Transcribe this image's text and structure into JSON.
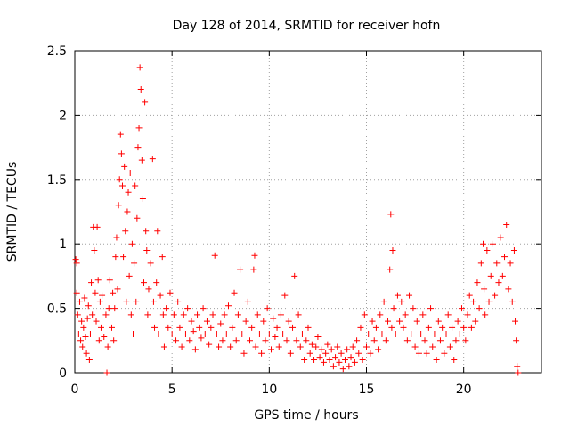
{
  "chart_data": {
    "type": "scatter",
    "title": "Day 128 of 2014, SRMTID for receiver hofn",
    "xlabel": "GPS time / hours",
    "ylabel": "SRMTID / TECUs",
    "xlim": [
      0,
      24
    ],
    "ylim": [
      0,
      2.5
    ],
    "x_ticks": [
      0,
      5,
      10,
      15,
      20
    ],
    "x_tick_labels": [
      "0",
      "5",
      "10",
      "15",
      "20"
    ],
    "y_ticks": [
      0,
      0.5,
      1,
      1.5,
      2,
      2.5
    ],
    "y_tick_labels": [
      "0",
      "0.5",
      "1",
      "1.5",
      "2",
      "2.5"
    ],
    "grid": true,
    "marker": "+",
    "color": "#ff0000",
    "series": [
      {
        "name": "SRMTID",
        "points": [
          [
            0.05,
            0.88
          ],
          [
            0.1,
            0.85
          ],
          [
            0.1,
            0.62
          ],
          [
            0.15,
            0.45
          ],
          [
            0.2,
            0.3
          ],
          [
            0.25,
            0.55
          ],
          [
            0.3,
            0.25
          ],
          [
            0.35,
            0.4
          ],
          [
            0.4,
            0.2
          ],
          [
            0.45,
            0.35
          ],
          [
            0.5,
            0.58
          ],
          [
            0.55,
            0.28
          ],
          [
            0.6,
            0.15
          ],
          [
            0.65,
            0.42
          ],
          [
            0.7,
            0.52
          ],
          [
            0.75,
            0.1
          ],
          [
            0.8,
            0.3
          ],
          [
            0.85,
            0.7
          ],
          [
            0.9,
            0.45
          ],
          [
            0.95,
            1.13
          ],
          [
            1.0,
            0.95
          ],
          [
            1.05,
            0.62
          ],
          [
            1.1,
            0.4
          ],
          [
            1.15,
            1.13
          ],
          [
            1.2,
            0.72
          ],
          [
            1.25,
            0.25
          ],
          [
            1.3,
            0.55
          ],
          [
            1.35,
            0.35
          ],
          [
            1.4,
            0.6
          ],
          [
            1.5,
            0.28
          ],
          [
            1.6,
            0.45
          ],
          [
            1.65,
            0.0
          ],
          [
            1.7,
            0.2
          ],
          [
            1.75,
            0.5
          ],
          [
            1.8,
            0.72
          ],
          [
            1.9,
            0.35
          ],
          [
            1.95,
            0.62
          ],
          [
            2.0,
            0.25
          ],
          [
            2.05,
            0.5
          ],
          [
            2.1,
            0.9
          ],
          [
            2.15,
            1.05
          ],
          [
            2.2,
            0.65
          ],
          [
            2.25,
            1.3
          ],
          [
            2.3,
            1.5
          ],
          [
            2.35,
            1.85
          ],
          [
            2.4,
            1.7
          ],
          [
            2.45,
            1.45
          ],
          [
            2.5,
            0.9
          ],
          [
            2.55,
            1.6
          ],
          [
            2.6,
            1.1
          ],
          [
            2.65,
            0.55
          ],
          [
            2.7,
            1.25
          ],
          [
            2.75,
            1.4
          ],
          [
            2.8,
            0.75
          ],
          [
            2.85,
            1.55
          ],
          [
            2.9,
            0.45
          ],
          [
            2.95,
            1.0
          ],
          [
            3.0,
            0.3
          ],
          [
            3.05,
            0.85
          ],
          [
            3.1,
            1.45
          ],
          [
            3.15,
            0.55
          ],
          [
            3.2,
            1.2
          ],
          [
            3.25,
            1.75
          ],
          [
            3.3,
            1.9
          ],
          [
            3.35,
            2.37
          ],
          [
            3.4,
            2.2
          ],
          [
            3.45,
            1.65
          ],
          [
            3.5,
            1.35
          ],
          [
            3.55,
            0.7
          ],
          [
            3.6,
            2.1
          ],
          [
            3.65,
            1.1
          ],
          [
            3.7,
            0.95
          ],
          [
            3.75,
            0.45
          ],
          [
            3.8,
            0.65
          ],
          [
            3.9,
            0.85
          ],
          [
            4.0,
            1.66
          ],
          [
            4.05,
            0.55
          ],
          [
            4.1,
            0.35
          ],
          [
            4.2,
            0.7
          ],
          [
            4.25,
            1.1
          ],
          [
            4.3,
            0.3
          ],
          [
            4.4,
            0.6
          ],
          [
            4.5,
            0.9
          ],
          [
            4.55,
            0.45
          ],
          [
            4.6,
            0.2
          ],
          [
            4.7,
            0.5
          ],
          [
            4.8,
            0.35
          ],
          [
            4.9,
            0.62
          ],
          [
            5.0,
            0.3
          ],
          [
            5.1,
            0.45
          ],
          [
            5.2,
            0.25
          ],
          [
            5.3,
            0.55
          ],
          [
            5.4,
            0.35
          ],
          [
            5.5,
            0.2
          ],
          [
            5.6,
            0.45
          ],
          [
            5.7,
            0.3
          ],
          [
            5.8,
            0.5
          ],
          [
            5.9,
            0.25
          ],
          [
            6.0,
            0.4
          ],
          [
            6.1,
            0.32
          ],
          [
            6.2,
            0.18
          ],
          [
            6.3,
            0.45
          ],
          [
            6.4,
            0.35
          ],
          [
            6.5,
            0.27
          ],
          [
            6.6,
            0.5
          ],
          [
            6.7,
            0.3
          ],
          [
            6.8,
            0.4
          ],
          [
            6.9,
            0.22
          ],
          [
            7.0,
            0.35
          ],
          [
            7.1,
            0.45
          ],
          [
            7.2,
            0.91
          ],
          [
            7.3,
            0.3
          ],
          [
            7.4,
            0.2
          ],
          [
            7.5,
            0.38
          ],
          [
            7.6,
            0.25
          ],
          [
            7.7,
            0.45
          ],
          [
            7.8,
            0.3
          ],
          [
            7.9,
            0.52
          ],
          [
            8.0,
            0.2
          ],
          [
            8.1,
            0.35
          ],
          [
            8.2,
            0.62
          ],
          [
            8.3,
            0.25
          ],
          [
            8.4,
            0.45
          ],
          [
            8.5,
            0.8
          ],
          [
            8.6,
            0.3
          ],
          [
            8.7,
            0.15
          ],
          [
            8.8,
            0.4
          ],
          [
            8.9,
            0.55
          ],
          [
            9.0,
            0.25
          ],
          [
            9.1,
            0.35
          ],
          [
            9.2,
            0.8
          ],
          [
            9.25,
            0.91
          ],
          [
            9.3,
            0.2
          ],
          [
            9.4,
            0.45
          ],
          [
            9.5,
            0.3
          ],
          [
            9.6,
            0.15
          ],
          [
            9.7,
            0.4
          ],
          [
            9.8,
            0.25
          ],
          [
            9.9,
            0.5
          ],
          [
            10.0,
            0.3
          ],
          [
            10.1,
            0.18
          ],
          [
            10.2,
            0.42
          ],
          [
            10.3,
            0.28
          ],
          [
            10.4,
            0.35
          ],
          [
            10.5,
            0.2
          ],
          [
            10.6,
            0.45
          ],
          [
            10.7,
            0.3
          ],
          [
            10.8,
            0.6
          ],
          [
            10.9,
            0.25
          ],
          [
            11.0,
            0.4
          ],
          [
            11.1,
            0.15
          ],
          [
            11.2,
            0.35
          ],
          [
            11.3,
            0.75
          ],
          [
            11.4,
            0.25
          ],
          [
            11.5,
            0.45
          ],
          [
            11.6,
            0.2
          ],
          [
            11.7,
            0.3
          ],
          [
            11.8,
            0.1
          ],
          [
            11.9,
            0.25
          ],
          [
            12.0,
            0.35
          ],
          [
            12.1,
            0.15
          ],
          [
            12.2,
            0.22
          ],
          [
            12.3,
            0.1
          ],
          [
            12.4,
            0.2
          ],
          [
            12.5,
            0.28
          ],
          [
            12.6,
            0.12
          ],
          [
            12.7,
            0.18
          ],
          [
            12.8,
            0.08
          ],
          [
            12.9,
            0.15
          ],
          [
            13.0,
            0.22
          ],
          [
            13.1,
            0.1
          ],
          [
            13.2,
            0.18
          ],
          [
            13.3,
            0.05
          ],
          [
            13.4,
            0.12
          ],
          [
            13.5,
            0.2
          ],
          [
            13.6,
            0.08
          ],
          [
            13.7,
            0.15
          ],
          [
            13.8,
            0.03
          ],
          [
            13.9,
            0.1
          ],
          [
            14.0,
            0.18
          ],
          [
            14.1,
            0.05
          ],
          [
            14.2,
            0.12
          ],
          [
            14.3,
            0.2
          ],
          [
            14.4,
            0.08
          ],
          [
            14.5,
            0.25
          ],
          [
            14.6,
            0.15
          ],
          [
            14.7,
            0.35
          ],
          [
            14.8,
            0.1
          ],
          [
            14.9,
            0.45
          ],
          [
            15.0,
            0.2
          ],
          [
            15.1,
            0.3
          ],
          [
            15.2,
            0.15
          ],
          [
            15.3,
            0.4
          ],
          [
            15.4,
            0.25
          ],
          [
            15.5,
            0.35
          ],
          [
            15.6,
            0.18
          ],
          [
            15.7,
            0.45
          ],
          [
            15.8,
            0.3
          ],
          [
            15.9,
            0.55
          ],
          [
            16.0,
            0.25
          ],
          [
            16.1,
            0.4
          ],
          [
            16.2,
            0.8
          ],
          [
            16.25,
            1.23
          ],
          [
            16.3,
            0.35
          ],
          [
            16.35,
            0.95
          ],
          [
            16.4,
            0.5
          ],
          [
            16.5,
            0.3
          ],
          [
            16.6,
            0.6
          ],
          [
            16.7,
            0.4
          ],
          [
            16.8,
            0.55
          ],
          [
            16.9,
            0.35
          ],
          [
            17.0,
            0.45
          ],
          [
            17.1,
            0.25
          ],
          [
            17.2,
            0.6
          ],
          [
            17.3,
            0.3
          ],
          [
            17.4,
            0.5
          ],
          [
            17.5,
            0.2
          ],
          [
            17.6,
            0.4
          ],
          [
            17.7,
            0.15
          ],
          [
            17.8,
            0.3
          ],
          [
            17.9,
            0.45
          ],
          [
            18.0,
            0.25
          ],
          [
            18.1,
            0.15
          ],
          [
            18.2,
            0.35
          ],
          [
            18.3,
            0.5
          ],
          [
            18.4,
            0.2
          ],
          [
            18.5,
            0.3
          ],
          [
            18.6,
            0.1
          ],
          [
            18.7,
            0.4
          ],
          [
            18.8,
            0.25
          ],
          [
            18.9,
            0.35
          ],
          [
            19.0,
            0.15
          ],
          [
            19.1,
            0.3
          ],
          [
            19.2,
            0.45
          ],
          [
            19.3,
            0.2
          ],
          [
            19.4,
            0.35
          ],
          [
            19.5,
            0.1
          ],
          [
            19.6,
            0.25
          ],
          [
            19.7,
            0.4
          ],
          [
            19.8,
            0.3
          ],
          [
            19.9,
            0.5
          ],
          [
            20.0,
            0.35
          ],
          [
            20.1,
            0.25
          ],
          [
            20.2,
            0.45
          ],
          [
            20.3,
            0.6
          ],
          [
            20.4,
            0.35
          ],
          [
            20.5,
            0.55
          ],
          [
            20.6,
            0.4
          ],
          [
            20.7,
            0.7
          ],
          [
            20.8,
            0.5
          ],
          [
            20.9,
            0.85
          ],
          [
            21.0,
            1.0
          ],
          [
            21.05,
            0.65
          ],
          [
            21.1,
            0.45
          ],
          [
            21.2,
            0.95
          ],
          [
            21.3,
            0.55
          ],
          [
            21.4,
            0.75
          ],
          [
            21.5,
            1.0
          ],
          [
            21.6,
            0.6
          ],
          [
            21.7,
            0.85
          ],
          [
            21.8,
            0.7
          ],
          [
            21.9,
            1.05
          ],
          [
            22.0,
            0.75
          ],
          [
            22.1,
            0.9
          ],
          [
            22.2,
            1.15
          ],
          [
            22.3,
            0.65
          ],
          [
            22.4,
            0.85
          ],
          [
            22.5,
            0.55
          ],
          [
            22.6,
            0.95
          ],
          [
            22.65,
            0.4
          ],
          [
            22.7,
            0.25
          ],
          [
            22.75,
            0.05
          ],
          [
            22.8,
            0.0
          ]
        ]
      }
    ]
  }
}
